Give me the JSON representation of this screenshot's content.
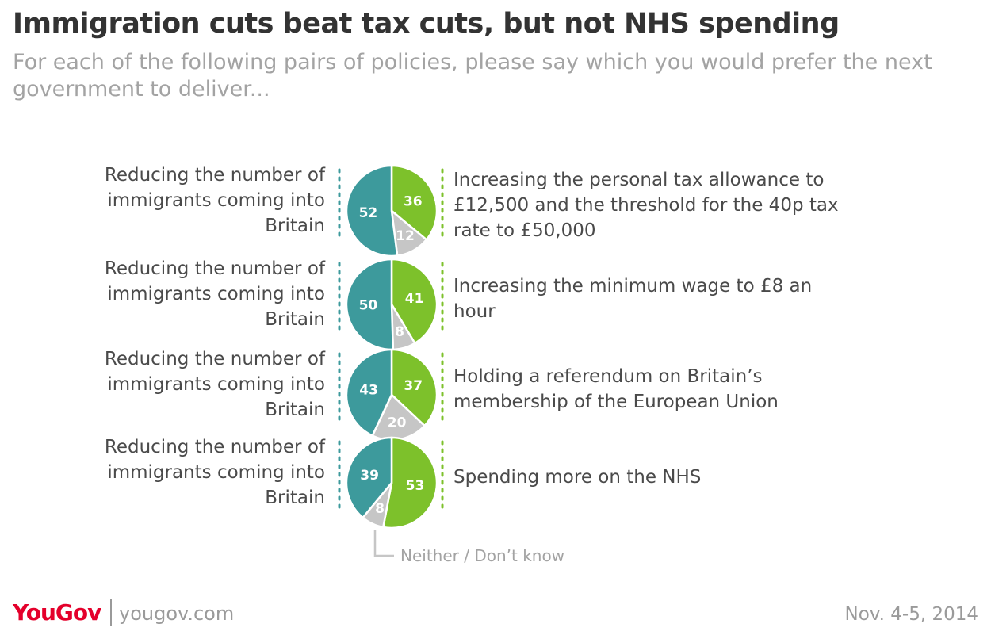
{
  "title": "Immigration cuts beat tax cuts, but not NHS spending",
  "subtitle": "For each of the following pairs of policies, please say which you would prefer the next government to deliver...",
  "footer": {
    "brand": "YouGov",
    "url": "yougov.com",
    "date": "Nov. 4-5, 2014"
  },
  "colors": {
    "immigration": "#3d9a9c",
    "alternative": "#7dc12b",
    "neither": "#c6c6c6",
    "text": "#4a4a4a",
    "note": "#a3a3a3"
  },
  "chart_data": {
    "type": "pie",
    "annotation": "Neither / Don’t know",
    "pies": [
      {
        "left_label": "Reducing the number of immigrants coming into Britain",
        "left_lines": [
          "Reducing the number of",
          "immigrants coming into",
          "Britain"
        ],
        "right_label": "Increasing the personal tax allowance to £12,500 and the threshold for the 40p tax rate to £50,000",
        "right_lines": [
          "Increasing the personal tax allowance to",
          "£12,500 and the threshold for the 40p tax",
          "rate to £50,000"
        ],
        "values": {
          "immigration": 52,
          "alternative": 36,
          "neither": 12
        }
      },
      {
        "left_label": "Reducing the number of immigrants coming into Britain",
        "left_lines": [
          "Reducing the number of",
          "immigrants coming into",
          "Britain"
        ],
        "right_label": "Increasing the minimum wage to £8 an hour",
        "right_lines": [
          "Increasing the minimum wage to £8 an",
          "hour"
        ],
        "values": {
          "immigration": 50,
          "alternative": 41,
          "neither": 8
        }
      },
      {
        "left_label": "Reducing the number of immigrants coming into Britain",
        "left_lines": [
          "Reducing the number of",
          "immigrants coming into",
          "Britain"
        ],
        "right_label": "Holding a referendum on Britain’s membership of the European Union",
        "right_lines": [
          "Holding a referendum on Britain’s",
          "membership of the European Union"
        ],
        "values": {
          "immigration": 43,
          "alternative": 37,
          "neither": 20
        }
      },
      {
        "left_label": "Reducing the number of immigrants coming into Britain",
        "left_lines": [
          "Reducing the number of",
          "immigrants coming into",
          "Britain"
        ],
        "right_label": "Spending more on the NHS",
        "right_lines": [
          "Spending more on the NHS"
        ],
        "values": {
          "immigration": 39,
          "alternative": 53,
          "neither": 8
        }
      }
    ]
  }
}
